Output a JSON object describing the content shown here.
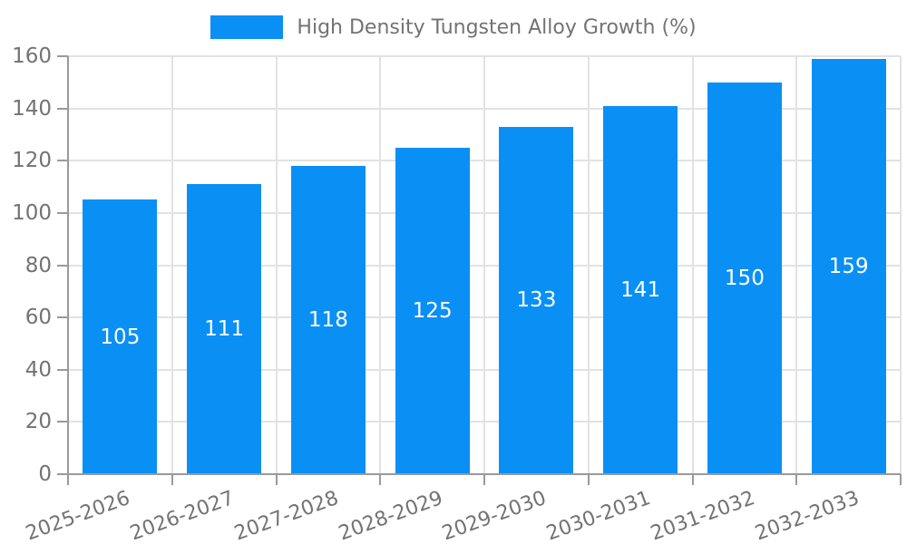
{
  "legend": {
    "label": "High Density Tungsten Alloy Growth (%)"
  },
  "chart_data": {
    "type": "bar",
    "title": "",
    "xlabel": "",
    "ylabel": "",
    "categories": [
      "2025-2026",
      "2026-2027",
      "2027-2028",
      "2028-2029",
      "2029-2030",
      "2030-2031",
      "2031-2032",
      "2032-2033"
    ],
    "values": [
      105,
      111,
      118,
      125,
      133,
      141,
      150,
      159
    ],
    "series_name": "High Density Tungsten Alloy Growth (%)",
    "ylim": [
      0,
      160
    ],
    "ytick_step": 20,
    "ytick_labels": [
      "0",
      "20",
      "40",
      "60",
      "80",
      "100",
      "120",
      "140",
      "160"
    ],
    "grid": true,
    "legend_position": "top-center",
    "value_label_position": "inside-middle",
    "xtick_rotation_deg": -20,
    "colors": {
      "bar": "#0a90f5",
      "value_label": "#ffffff",
      "tick_label": "#737373",
      "gridline": "#e2e2e2",
      "axis_spine": "#9a9a9a",
      "background": "#ffffff"
    }
  }
}
